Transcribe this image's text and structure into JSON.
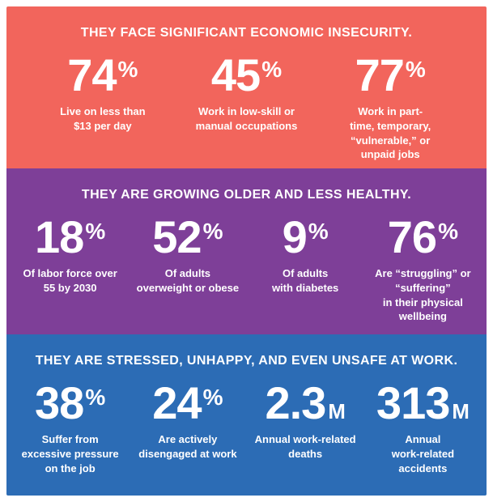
{
  "poster": {
    "frame_background": "#ffffff",
    "text_color": "#ffffff",
    "bands": [
      {
        "id": "economic-insecurity",
        "color": "#F2655C",
        "title": "THEY FACE SIGNIFICANT ECONOMIC INSECURITY.",
        "stats": [
          {
            "value": "74",
            "unit": "%",
            "caption": "Live on less than\n$13 per day"
          },
          {
            "value": "45",
            "unit": "%",
            "caption": "Work in low-skill or\nmanual occupations"
          },
          {
            "value": "77",
            "unit": "%",
            "caption": "Work in part-\ntime, temporary,\n“vulnerable,” or\nunpaid jobs"
          }
        ]
      },
      {
        "id": "aging-health",
        "color": "#7E3F98",
        "title": "THEY ARE GROWING OLDER AND LESS HEALTHY.",
        "stats": [
          {
            "value": "18",
            "unit": "%",
            "caption": "Of labor force over\n55 by 2030"
          },
          {
            "value": "52",
            "unit": "%",
            "caption": "Of adults\noverweight or obese"
          },
          {
            "value": "9",
            "unit": "%",
            "caption": "Of adults\nwith diabetes"
          },
          {
            "value": "76",
            "unit": "%",
            "caption": "Are “struggling” or\n“suffering”\nin their physical\nwellbeing"
          }
        ]
      },
      {
        "id": "work-stress",
        "color": "#2C6CB5",
        "title": "THEY ARE STRESSED, UNHAPPY, AND EVEN UNSAFE AT WORK.",
        "stats": [
          {
            "value": "38",
            "unit": "%",
            "caption": "Suffer from\nexcessive pressure\non the job"
          },
          {
            "value": "24",
            "unit": "%",
            "caption": "Are actively\ndisengaged at work"
          },
          {
            "value": "2.3",
            "unit": "M",
            "caption": "Annual work-related\ndeaths"
          },
          {
            "value": "313",
            "unit": "M",
            "caption": "Annual\nwork-related\naccidents"
          }
        ]
      }
    ]
  },
  "chart_data": [
    {
      "type": "table",
      "title": "THEY FACE SIGNIFICANT ECONOMIC INSECURITY.",
      "categories": [
        "Live on less than $13 per day",
        "Work in low-skill or manual occupations",
        "Work in part-time, temporary, “vulnerable,” or unpaid jobs"
      ],
      "values": [
        74,
        45,
        77
      ],
      "unit": "%"
    },
    {
      "type": "table",
      "title": "THEY ARE GROWING OLDER AND LESS HEALTHY.",
      "categories": [
        "Of labor force over 55 by 2030",
        "Of adults overweight or obese",
        "Of adults with diabetes",
        "Are “struggling” or “suffering” in their physical wellbeing"
      ],
      "values": [
        18,
        52,
        9,
        76
      ],
      "unit": "%"
    },
    {
      "type": "table",
      "title": "THEY ARE STRESSED, UNHAPPY, AND EVEN UNSAFE AT WORK.",
      "categories": [
        "Suffer from excessive pressure on the job",
        "Are actively disengaged at work",
        "Annual work-related deaths (millions)",
        "Annual work-related accidents (millions)"
      ],
      "values": [
        38,
        24,
        2.3,
        313
      ],
      "units": [
        "%",
        "%",
        "M",
        "M"
      ]
    }
  ]
}
